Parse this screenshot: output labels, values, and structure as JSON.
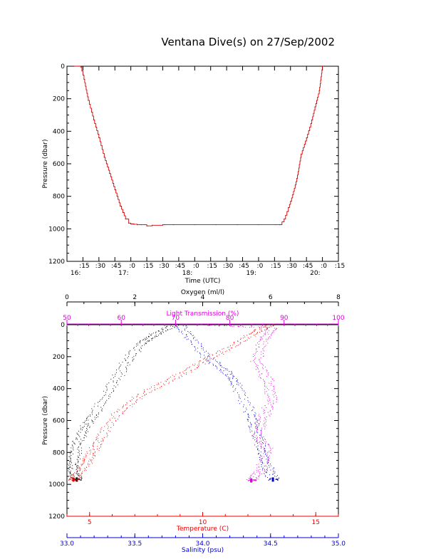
{
  "page": {
    "title": "Ventana Dive(s) on 27/Sep/2002"
  },
  "colors": {
    "axis": "#000000",
    "pressure_trace": "#cc0000",
    "oxygen": "#000000",
    "light_transmission": "#dd00dd",
    "temperature": "#ee0000",
    "salinity": "#0000cc"
  },
  "chart_data": [
    {
      "type": "line",
      "title": "Ventana Dive(s) on 27/Sep/2002",
      "xlabel": "Time (UTC)",
      "ylabel": "Pressure (dbar)",
      "x_unit": "minutes after 16:00 UTC",
      "xlim": [
        0,
        255
      ],
      "ylim": [
        1200,
        0
      ],
      "y_ticks": [
        "0",
        "200",
        "400",
        "600",
        "800",
        "1000",
        "1200"
      ],
      "x_ticks": [
        {
          "x": 15,
          "label": ":15",
          "hour": "16:"
        },
        {
          "x": 30,
          "label": ":30",
          "hour": ""
        },
        {
          "x": 45,
          "label": ":45",
          "hour": ""
        },
        {
          "x": 60,
          "label": ":0",
          "hour": "17:"
        },
        {
          "x": 75,
          "label": ":15",
          "hour": ""
        },
        {
          "x": 90,
          "label": ":30",
          "hour": ""
        },
        {
          "x": 105,
          "label": ":45",
          "hour": ""
        },
        {
          "x": 120,
          "label": ":0",
          "hour": "18:"
        },
        {
          "x": 135,
          "label": ":15",
          "hour": ""
        },
        {
          "x": 150,
          "label": ":30",
          "hour": ""
        },
        {
          "x": 165,
          "label": ":45",
          "hour": ""
        },
        {
          "x": 180,
          "label": ":0",
          "hour": "19:"
        },
        {
          "x": 195,
          "label": ":15",
          "hour": ""
        },
        {
          "x": 210,
          "label": ":30",
          "hour": ""
        },
        {
          "x": 225,
          "label": ":45",
          "hour": ""
        },
        {
          "x": 240,
          "label": ":0",
          "hour": "20:"
        },
        {
          "x": 255,
          "label": ":15",
          "hour": ""
        }
      ],
      "series": [
        {
          "color": "#cc0000",
          "x": [
            7,
            11,
            13,
            16,
            20,
            25,
            30,
            35,
            40,
            45,
            50,
            55,
            58,
            60,
            63,
            66,
            70,
            75,
            80,
            90,
            100,
            120,
            140,
            160,
            180,
            196,
            200,
            204,
            208,
            212,
            216,
            220,
            225,
            230,
            233,
            237,
            240
          ],
          "y": [
            0,
            0,
            5,
            80,
            210,
            330,
            440,
            560,
            660,
            760,
            860,
            940,
            965,
            970,
            972,
            975,
            975,
            982,
            978,
            975,
            975,
            975,
            975,
            975,
            975,
            975,
            975,
            940,
            870,
            790,
            690,
            540,
            440,
            330,
            250,
            150,
            0
          ]
        }
      ]
    },
    {
      "type": "scatter",
      "ylabel": "Pressure (dbar)",
      "ylim": [
        1200,
        0
      ],
      "y_ticks": [
        "0",
        "200",
        "400",
        "600",
        "800",
        "1000",
        "1200"
      ],
      "axes": [
        {
          "name": "Oxygen (ml/l)",
          "position": "top",
          "range": [
            0,
            8
          ],
          "ticks": [
            "0",
            "2",
            "4",
            "6",
            "8"
          ]
        },
        {
          "name": "Light Transmission (%)",
          "position": "top",
          "range": [
            50,
            100
          ],
          "ticks": [
            "50",
            "60",
            "70",
            "80",
            "90",
            "100"
          ]
        },
        {
          "name": "Temperature (C)",
          "position": "bottom",
          "range": [
            4,
            16
          ],
          "ticks": [
            "5",
            "10",
            "15"
          ]
        },
        {
          "name": "Salinity (psu)",
          "position": "bottom",
          "range": [
            33.0,
            35.0
          ],
          "ticks": [
            "33.0",
            "33.5",
            "34.0",
            "34.5",
            "35.0"
          ]
        }
      ],
      "series": [
        {
          "name": "Oxygen (ml/l)",
          "axis": "Oxygen (ml/l)",
          "color": "#000000",
          "x": [
            3.2,
            2.6,
            2.2,
            1.7,
            1.3,
            0.8,
            0.5,
            0.3,
            0.2,
            0.2,
            0.3
          ],
          "y": [
            0,
            60,
            120,
            250,
            400,
            560,
            650,
            750,
            850,
            920,
            970
          ]
        },
        {
          "name": "Light Transmission (%)",
          "axis": "Light Transmission (%)",
          "color": "#dd00dd",
          "x": [
            75,
            88,
            86,
            85,
            87,
            88,
            86,
            85,
            87,
            86,
            84
          ],
          "y": [
            0,
            20,
            100,
            230,
            350,
            470,
            590,
            690,
            780,
            900,
            975
          ]
        },
        {
          "name": "Temperature (C)",
          "axis": "Temperature (C)",
          "color": "#ee0000",
          "x": [
            13.0,
            12.2,
            11.0,
            9.8,
            8.5,
            7.2,
            6.2,
            5.5,
            5.1,
            4.8,
            4.3
          ],
          "y": [
            0,
            60,
            160,
            250,
            350,
            450,
            560,
            700,
            800,
            880,
            970
          ]
        },
        {
          "name": "Salinity (psu)",
          "axis": "Salinity (psu)",
          "color": "#0000cc",
          "x": [
            33.82,
            33.93,
            34.05,
            34.18,
            34.25,
            34.35,
            34.38,
            34.43,
            34.47,
            34.52
          ],
          "y": [
            0,
            100,
            220,
            300,
            380,
            550,
            650,
            780,
            880,
            970
          ]
        }
      ]
    }
  ]
}
